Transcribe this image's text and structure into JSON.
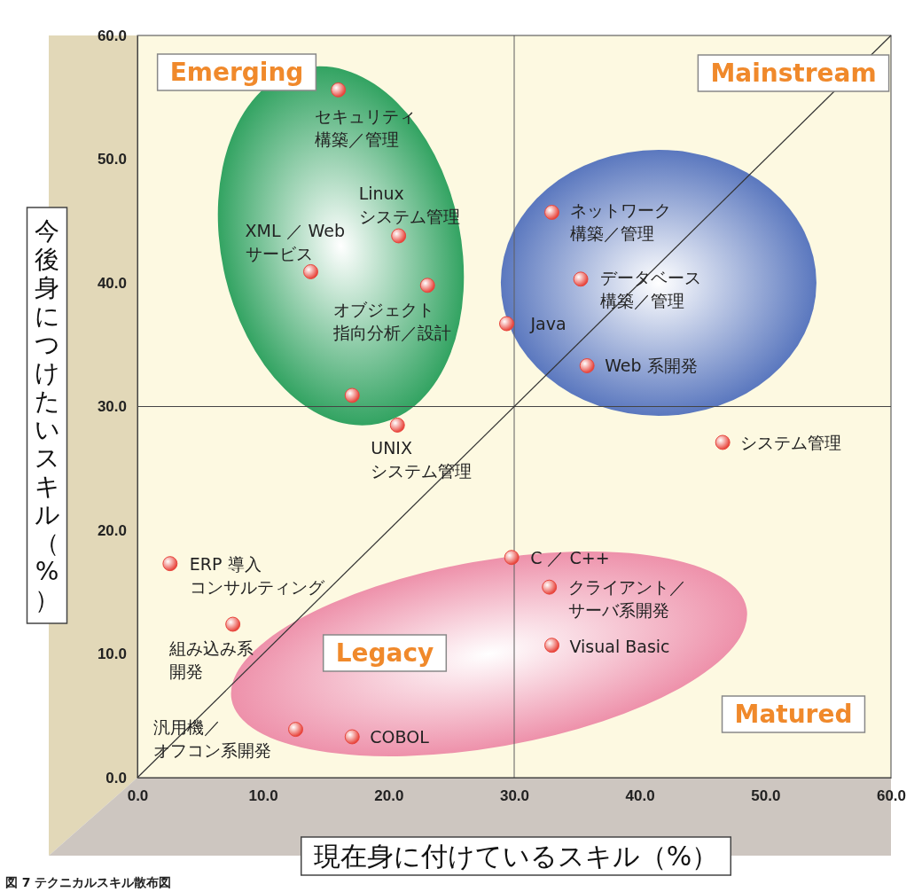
{
  "chart_data": {
    "type": "scatter",
    "title": "図 7 テクニカルスキル散布図",
    "xlabel": "現在身に付けているスキル（%）",
    "ylabel": "今後身につけたいスキル（%）",
    "xlim": [
      0,
      60
    ],
    "ylim": [
      0,
      60
    ],
    "xticks": [
      {
        "value": 0,
        "label": "0.0"
      },
      {
        "value": 10,
        "label": "10.0"
      },
      {
        "value": 20,
        "label": "20.0"
      },
      {
        "value": 30,
        "label": "30.0"
      },
      {
        "value": 40,
        "label": "40.0"
      },
      {
        "value": 50,
        "label": "50.0"
      },
      {
        "value": 60,
        "label": "60.0"
      }
    ],
    "yticks": [
      {
        "value": 0,
        "label": "0.0"
      },
      {
        "value": 10,
        "label": "10.0"
      },
      {
        "value": 20,
        "label": "20.0"
      },
      {
        "value": 30,
        "label": "30.0"
      },
      {
        "value": 40,
        "label": "40.0"
      },
      {
        "value": 50,
        "label": "50.0"
      },
      {
        "value": 60,
        "label": "60.0"
      }
    ],
    "marker": "circle",
    "series": [
      {
        "color": "#e8453c",
        "x": [
          16.0,
          20.8,
          13.8,
          23.1,
          17.1,
          20.7,
          33.0,
          35.3,
          29.4,
          35.8,
          46.6,
          2.6,
          7.6,
          12.6,
          17.1,
          29.8,
          32.8,
          33.0
        ],
        "values": [
          55.6,
          43.8,
          40.9,
          39.8,
          30.9,
          28.5,
          45.7,
          40.3,
          36.7,
          33.3,
          27.1,
          17.3,
          12.4,
          3.9,
          3.3,
          17.8,
          15.4,
          10.7
        ]
      },
      {
        "type": "line",
        "color": "#333333",
        "marker": "none",
        "x": [
          0,
          60
        ],
        "values": [
          0,
          60
        ]
      }
    ],
    "ref_lines": [
      {
        "axis": "x",
        "value": 30,
        "color": "#5e5e5e"
      },
      {
        "axis": "y",
        "value": 30,
        "color": "#444444"
      }
    ],
    "annotations": [
      "Emerging",
      "Mainstream",
      "Legacy",
      "Matured",
      {
        "text": "セキュリティ構築／管理",
        "x": 16.0,
        "y": 55.6
      },
      {
        "text": "Linux\nシステム管理",
        "x": 20.8,
        "y": 43.8
      },
      {
        "text": "XML ／ Web\nサービス",
        "x": 13.8,
        "y": 40.9
      },
      {
        "text": "オブジェクト指向分析／設計",
        "x": 23.1,
        "y": 39.8
      },
      {
        "text": "UNIX\nシステム管理",
        "x": 20.7,
        "y": 28.5
      },
      {
        "text": "ネットワーク構築／管理",
        "x": 33.0,
        "y": 45.7
      },
      {
        "text": "データベース構築／管理",
        "x": 35.3,
        "y": 40.3
      },
      {
        "text": "Java",
        "x": 29.4,
        "y": 36.7
      },
      {
        "text": "Web 系開発",
        "x": 35.8,
        "y": 33.3
      },
      {
        "text": "システム管理",
        "x": 46.6,
        "y": 27.1
      },
      {
        "text": "ERP 導入コンサルティング",
        "x": 2.6,
        "y": 17.3
      },
      {
        "text": "組み込み系開発",
        "x": 7.6,
        "y": 12.4
      },
      {
        "text": "汎用機／オフコン系開発",
        "x": 12.6,
        "y": 3.9
      },
      {
        "text": "COBOL",
        "x": 17.1,
        "y": 3.3
      },
      {
        "text": "C ／ C++",
        "x": 29.8,
        "y": 17.8
      },
      {
        "text": "クライアント／サーバ系開発",
        "x": 32.8,
        "y": 15.4
      },
      {
        "text": "Visual Basic",
        "x": 33.0,
        "y": 10.7
      }
    ]
  }
}
